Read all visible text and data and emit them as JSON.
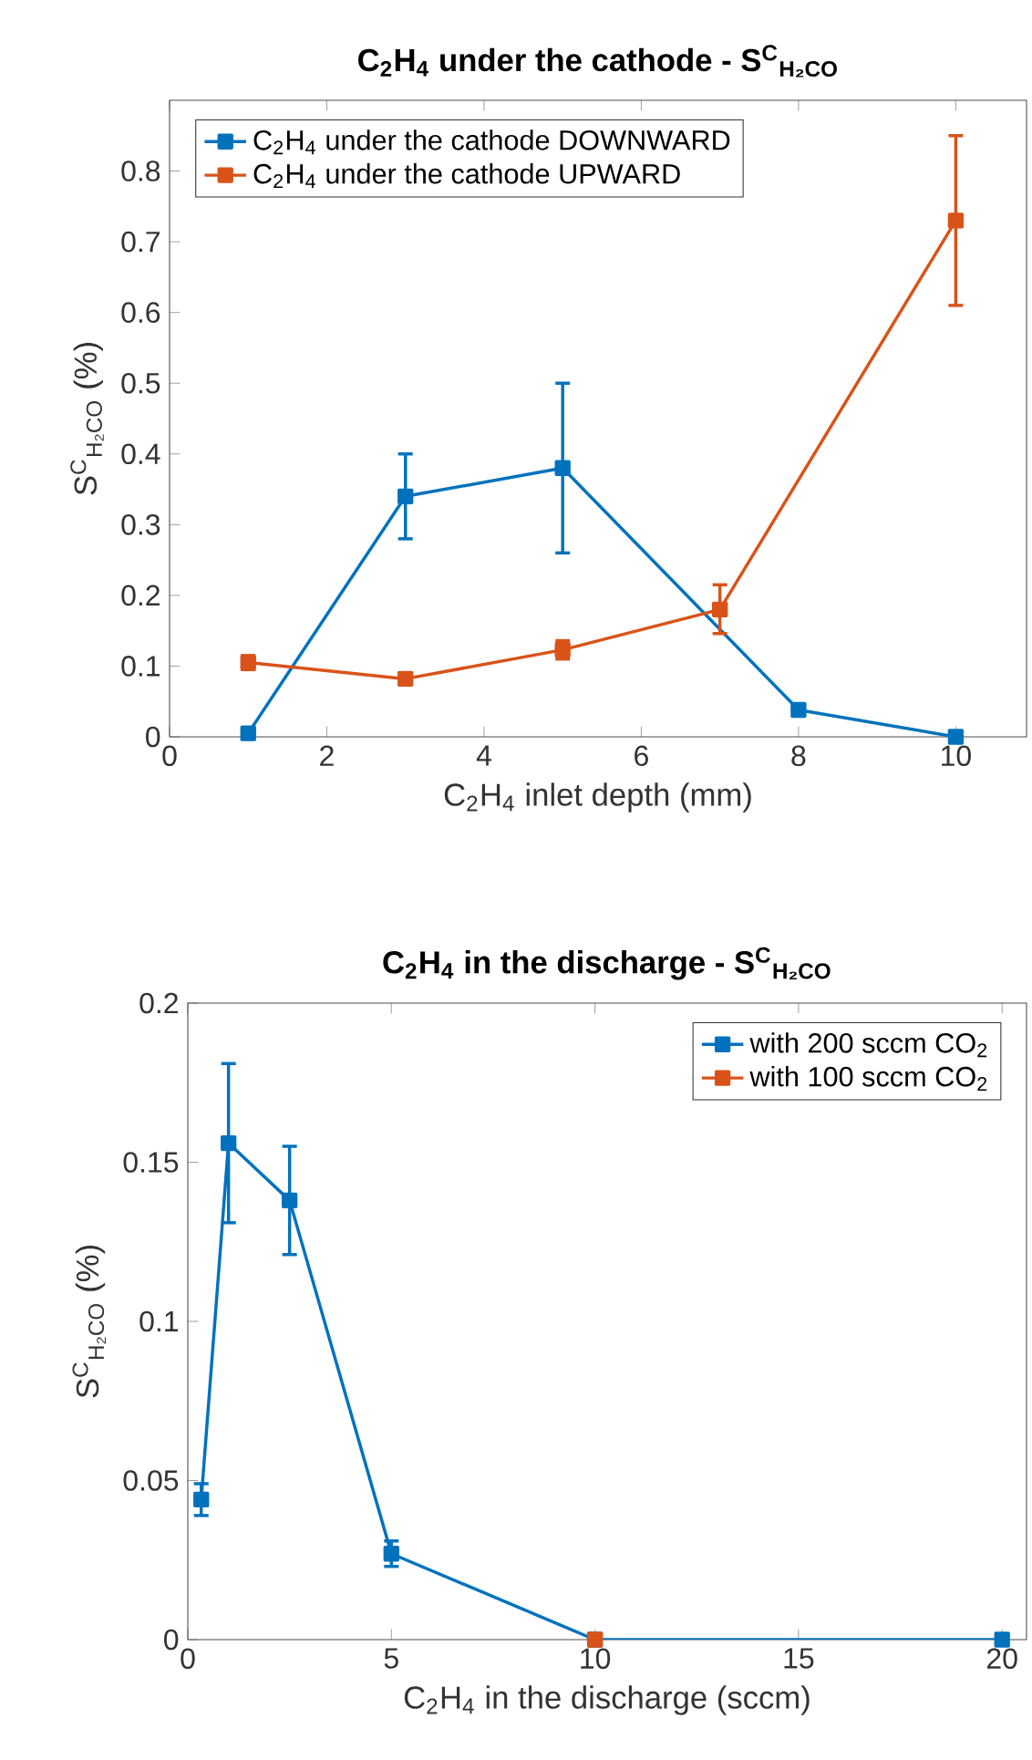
{
  "chart_data": [
    {
      "type": "line",
      "title": "C$_{2}$H$_{4}$ under the cathode - S$^{C}$$_{H₂CO}$",
      "xlabel": "C$_{2}$H$_{4}$ inlet depth (mm)",
      "ylabel": "S$^{C}$$_{H₂CO}$ (%)",
      "xlim": [
        0,
        10.9
      ],
      "ylim": [
        0,
        0.9
      ],
      "xticks": [
        0,
        2,
        4,
        6,
        8,
        10
      ],
      "yticks": [
        0,
        0.1,
        0.2,
        0.3,
        0.4,
        0.5,
        0.6,
        0.7,
        0.8
      ],
      "legend": "top left",
      "marker": "square",
      "series": [
        {
          "name": "C$_{2}$H$_{4}$ under the cathode DOWNWARD",
          "color": "#0072bd",
          "x": [
            1,
            3,
            5,
            8,
            10
          ],
          "values": [
            0.005,
            0.34,
            0.38,
            0.038,
            0
          ],
          "errors": [
            null,
            [
              0.28,
              0.4
            ],
            [
              0.26,
              0.5
            ],
            null,
            null
          ]
        },
        {
          "name": "C$_{2}$H$_{4}$ under the cathode UPWARD",
          "color": "#d95319",
          "x": [
            1,
            3,
            5,
            7,
            10
          ],
          "values": [
            0.105,
            0.082,
            0.123,
            0.18,
            0.73
          ],
          "errors": [
            [
              0.095,
              0.115
            ],
            [
              0.077,
              0.087
            ],
            [
              0.11,
              0.136
            ],
            [
              0.146,
              0.215
            ],
            [
              0.61,
              0.85
            ]
          ]
        }
      ]
    },
    {
      "type": "line",
      "title": "C$_{2}$H$_{4}$ in the discharge - S$^{C}$$_{H₂CO}$",
      "xlabel": "C$_{2}$H$_{4}$ in the discharge (sccm)",
      "ylabel": "S$^{C}$$_{H₂CO}$ (%)",
      "xlim": [
        0,
        20.6
      ],
      "ylim": [
        0,
        0.2
      ],
      "xticks": [
        0,
        5,
        10,
        15,
        20
      ],
      "yticks": [
        0,
        0.05,
        0.1,
        0.15,
        0.2
      ],
      "legend": "top right",
      "marker": "square",
      "series": [
        {
          "name": "with 200 sccm CO$_{2}$",
          "color": "#0072bd",
          "x": [
            0.33,
            1,
            2.5,
            5,
            10,
            20
          ],
          "values": [
            0.044,
            0.156,
            0.138,
            0.027,
            0,
            0
          ],
          "errors": [
            [
              0.039,
              0.049
            ],
            [
              0.131,
              0.181
            ],
            [
              0.121,
              0.155
            ],
            [
              0.023,
              0.031
            ],
            null,
            null
          ]
        },
        {
          "name": "with 100 sccm CO$_{2}$",
          "color": "#d95319",
          "x": [
            10
          ],
          "values": [
            0
          ],
          "errors": [
            null
          ]
        }
      ]
    }
  ]
}
